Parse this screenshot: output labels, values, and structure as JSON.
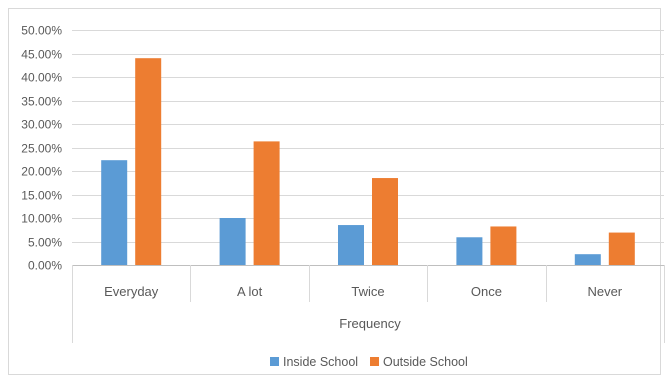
{
  "chart_data": {
    "type": "bar",
    "title": "",
    "xlabel": "Frequency",
    "ylabel": "",
    "categories": [
      "Everyday",
      "A lot",
      "Twice",
      "Once",
      "Never"
    ],
    "series": [
      {
        "name": "Inside School",
        "values": [
          22.3,
          10.0,
          8.5,
          5.9,
          2.3
        ],
        "color": "#5B9BD5"
      },
      {
        "name": "Outside School",
        "values": [
          44.0,
          26.3,
          18.5,
          8.2,
          6.9
        ],
        "color": "#ED7D31"
      }
    ],
    "ylim": [
      0,
      50
    ],
    "yticks": [
      "0.00%",
      "5.00%",
      "10.00%",
      "15.00%",
      "20.00%",
      "25.00%",
      "30.00%",
      "35.00%",
      "40.00%",
      "45.00%",
      "50.00%"
    ],
    "grid": "horizontal",
    "legend_position": "bottom"
  }
}
